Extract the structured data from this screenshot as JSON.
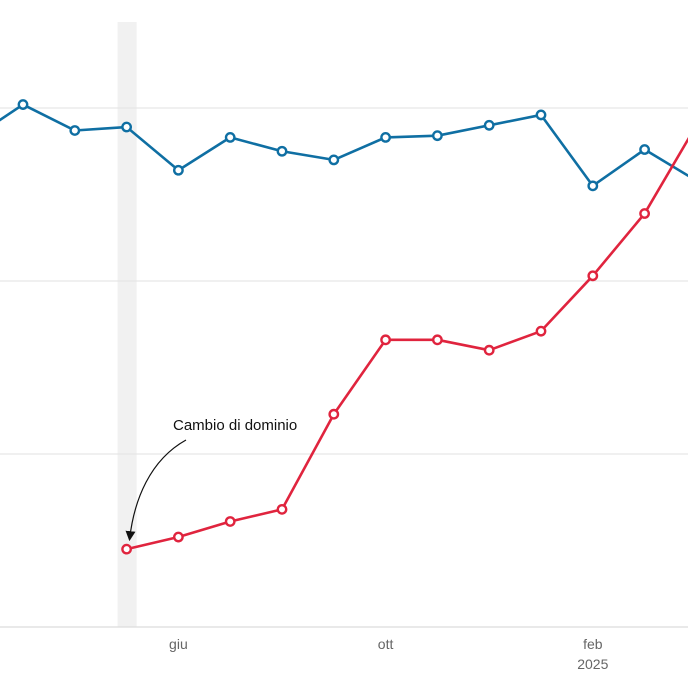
{
  "chart_data": {
    "type": "line",
    "title": "",
    "xlabel": "",
    "ylabel": "",
    "x_tick_labels": [
      {
        "month_index": 4,
        "label": "giu",
        "sublabel": ""
      },
      {
        "month_index": 8,
        "label": "ott",
        "sublabel": ""
      },
      {
        "month_index": 12,
        "label": "feb",
        "sublabel": "2025"
      }
    ],
    "x_range": [
      0.45,
      14
    ],
    "ylim": [
      0,
      3.3
    ],
    "grid_values": [
      1,
      2,
      3
    ],
    "grid": true,
    "highlight_month_index": 3,
    "annotation": {
      "text": "Cambio di dominio",
      "month_index": 3,
      "series": "red"
    },
    "series": [
      {
        "name": "blue",
        "color": "#0f6fa3",
        "x": [
          0,
          1,
          2,
          3,
          4,
          5,
          6,
          7,
          8,
          9,
          10,
          11,
          12,
          13,
          14
        ],
        "values": [
          2.82,
          3.02,
          2.87,
          2.89,
          2.64,
          2.83,
          2.75,
          2.7,
          2.83,
          2.84,
          2.9,
          2.96,
          2.55,
          2.76,
          2.58
        ]
      },
      {
        "name": "red",
        "color": "#e0243e",
        "x": [
          3,
          4,
          5,
          6,
          7,
          8,
          9,
          10,
          11,
          12,
          13,
          14
        ],
        "values": [
          0.45,
          0.52,
          0.61,
          0.68,
          1.23,
          1.66,
          1.66,
          1.6,
          1.71,
          2.03,
          2.39,
          2.9
        ]
      }
    ]
  }
}
